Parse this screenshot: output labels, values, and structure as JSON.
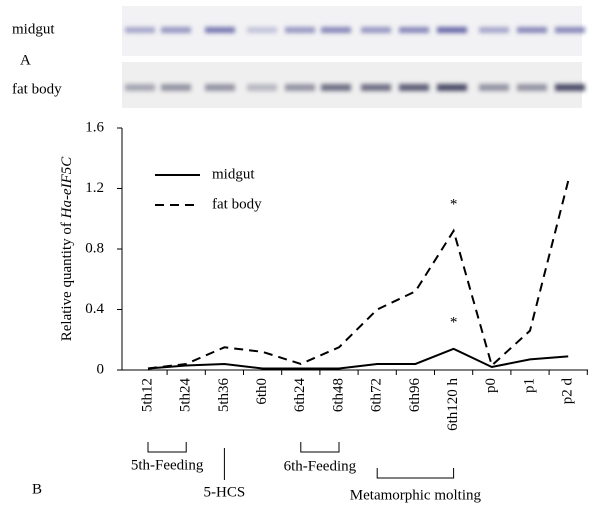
{
  "panel_a": {
    "label": "A",
    "rows": [
      "midgut",
      "fat body"
    ]
  },
  "panel_b_label": "B",
  "chart_data": {
    "type": "line",
    "ylabel": {
      "text": "Relative quantity of ",
      "italic": "Ha-eIF5C"
    },
    "categories": [
      "5th12",
      "5th24",
      "5th36",
      "6th0",
      "6th24",
      "6th48",
      "6th72",
      "6th96",
      "6th120 h",
      "p0",
      "p1",
      "p2 d"
    ],
    "series": [
      {
        "name": "midgut",
        "color": "#000000",
        "dash": "solid",
        "values": [
          0.01,
          0.03,
          0.04,
          0.01,
          0.01,
          0.01,
          0.04,
          0.04,
          0.14,
          0.02,
          0.07,
          0.09
        ]
      },
      {
        "name": "fat body",
        "color": "#000000",
        "dash": "dashed",
        "values": [
          0.01,
          0.04,
          0.15,
          0.12,
          0.04,
          0.15,
          0.4,
          0.52,
          0.92,
          0.03,
          0.26,
          1.25
        ]
      }
    ],
    "annotations": [
      {
        "text": "*",
        "category": "6th120 h",
        "series": "fat body"
      },
      {
        "text": "*",
        "category": "6th120 h",
        "series": "midgut"
      }
    ],
    "groups": [
      {
        "label": "5th-Feeding",
        "from": "5th12",
        "to": "5th24"
      },
      {
        "label": "5-HCS",
        "from": "5th36",
        "to": "5th36"
      },
      {
        "label": "6th-Feeding",
        "from": "6th24",
        "to": "6th48"
      },
      {
        "label": "Metamorphic molting",
        "from": "6th72",
        "to": "6th120 h"
      }
    ],
    "ylim": [
      0,
      1.6
    ],
    "yticks": [
      0,
      0.4,
      0.8,
      1.2,
      1.6
    ],
    "grid": false,
    "legend": "upper left"
  }
}
